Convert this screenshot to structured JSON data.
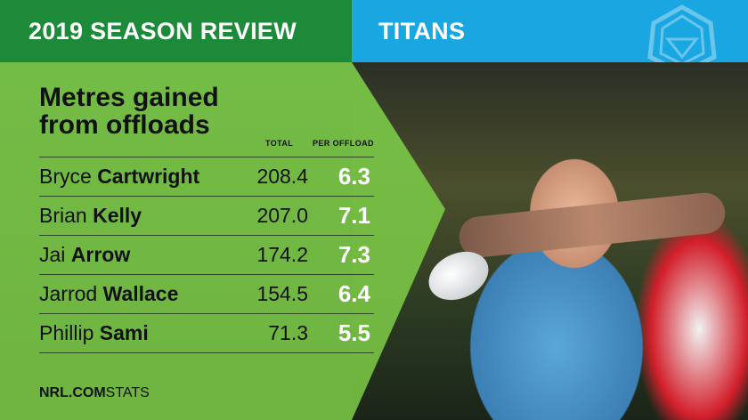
{
  "header": {
    "season_title": "2019 SEASON REVIEW",
    "team_name": "TITANS",
    "team_logo_icon": "titans-helmet-logo-icon",
    "colors": {
      "left": "#1d8a3a",
      "right": "#1aa6e0",
      "panel": "#76be42",
      "highlight": "#ffffff"
    }
  },
  "stat": {
    "title_line1": "Metres gained",
    "title_line2": "from offloads",
    "col_total": "TOTAL",
    "col_per": "PER OFFLOAD",
    "rows": [
      {
        "first": "Bryce",
        "last": "Cartwright",
        "total": "208.4",
        "per": "6.3"
      },
      {
        "first": "Brian",
        "last": "Kelly",
        "total": "207.0",
        "per": "7.1"
      },
      {
        "first": "Jai",
        "last": "Arrow",
        "total": "174.2",
        "per": "7.3"
      },
      {
        "first": "Jarrod",
        "last": "Wallace",
        "total": "154.5",
        "per": "6.4"
      },
      {
        "first": "Phillip",
        "last": "Sami",
        "total": "71.3",
        "per": "5.5"
      }
    ]
  },
  "footer": {
    "brand": "NRL.COM",
    "suffix": "STATS"
  },
  "background_image": "rugby-league-tackle-photo"
}
